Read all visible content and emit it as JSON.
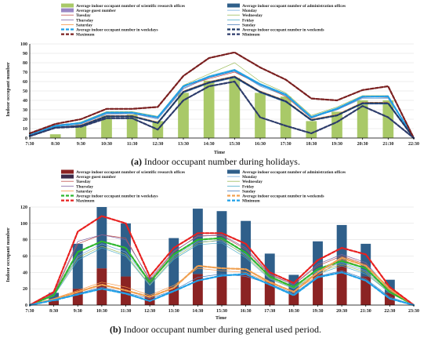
{
  "chart_data": [
    {
      "type": "bar",
      "caption_tag": "(a)",
      "caption": " Indoor occupant number during holidays.",
      "xlabel": "Time",
      "ylabel": "Indoor occupant number",
      "ylim": [
        0,
        100
      ],
      "yticks": [
        0,
        10,
        20,
        30,
        40,
        50,
        60,
        70,
        80,
        90,
        100
      ],
      "categories": [
        "7:30",
        "8:30",
        "9:30",
        "10:30",
        "11:30",
        "12:30",
        "13:30",
        "14:30",
        "15:30",
        "16:30",
        "17:30",
        "18:30",
        "19:30",
        "20:30",
        "21:30",
        "22:30"
      ],
      "grid": true,
      "legend_placement": "top",
      "bar_series": [
        {
          "name": "Average indoor occupant number of scientific research offices",
          "color": "#a9c968",
          "values": [
            0,
            4,
            14,
            24,
            25,
            18,
            48,
            61,
            64,
            48,
            44,
            18,
            28,
            40,
            40,
            0
          ]
        },
        {
          "name": "Average indoor occupant number of administration offices",
          "color": "#2f5f8a",
          "values": [
            0,
            0,
            0,
            0,
            0,
            0,
            0,
            0,
            0,
            0,
            0,
            0,
            0,
            0,
            0,
            0
          ]
        },
        {
          "name": "Average guest number",
          "color": "#9a86c4",
          "values": [
            0,
            0,
            0,
            0,
            0,
            0,
            0,
            0,
            0,
            0,
            0,
            0,
            0,
            0,
            0,
            0
          ]
        }
      ],
      "line_series": [
        {
          "name": "Monday",
          "color": "#6fa8dc",
          "dash": "",
          "width": 0.7,
          "values": [
            3,
            12,
            15,
            25,
            26,
            20,
            52,
            65,
            72,
            55,
            45,
            22,
            30,
            42,
            42,
            0
          ]
        },
        {
          "name": "Tuesday",
          "color": "#c0504d",
          "dash": "",
          "width": 0.7,
          "values": [
            4,
            14,
            16,
            27,
            27,
            22,
            55,
            63,
            70,
            57,
            44,
            21,
            31,
            44,
            43,
            0
          ]
        },
        {
          "name": "Wednesday",
          "color": "#9bbb59",
          "dash": "",
          "width": 0.7,
          "values": [
            3,
            12,
            17,
            28,
            28,
            23,
            56,
            68,
            80,
            60,
            48,
            24,
            33,
            45,
            45,
            0
          ]
        },
        {
          "name": "Thursday",
          "color": "#8064a2",
          "dash": "",
          "width": 0.7,
          "values": [
            4,
            13,
            15,
            26,
            26,
            21,
            53,
            64,
            71,
            56,
            46,
            22,
            30,
            43,
            44,
            0
          ]
        },
        {
          "name": "Friday",
          "color": "#4bacc6",
          "dash": "",
          "width": 0.7,
          "values": [
            3,
            12,
            16,
            27,
            27,
            22,
            54,
            66,
            73,
            58,
            47,
            23,
            32,
            44,
            45,
            0
          ]
        },
        {
          "name": "Saturday",
          "color": "#f79646",
          "dash": "",
          "width": 0.7,
          "values": [
            2,
            11,
            14,
            24,
            24,
            17,
            50,
            60,
            66,
            50,
            40,
            20,
            25,
            38,
            38,
            0
          ]
        },
        {
          "name": "Sunday",
          "color": "#4f81bd",
          "dash": "",
          "width": 0.7,
          "values": [
            2,
            11,
            13,
            23,
            23,
            16,
            48,
            58,
            64,
            48,
            38,
            19,
            24,
            36,
            36,
            0
          ]
        },
        {
          "name": "Average indoor occupant number in weekdays",
          "color": "#1fa0e8",
          "dash": "4,2",
          "width": 2.2,
          "values": [
            3,
            13,
            16,
            27,
            27,
            22,
            55,
            65,
            72,
            57,
            46,
            22,
            31,
            44,
            44,
            0
          ]
        },
        {
          "name": "Average indoor occupant number in weekends",
          "color": "#1f3a68",
          "dash": "4,2",
          "width": 2.2,
          "values": [
            2,
            11,
            13,
            23,
            23,
            16,
            49,
            59,
            65,
            49,
            39,
            19,
            24,
            37,
            37,
            0
          ]
        },
        {
          "name": "Maximum",
          "color": "#7a1f1f",
          "dash": "4,2",
          "width": 2.2,
          "values": [
            5,
            15,
            20,
            31,
            31,
            33,
            66,
            85,
            91,
            75,
            62,
            42,
            40,
            51,
            55,
            0
          ]
        },
        {
          "name": "Minimum",
          "color": "#2d3c6b",
          "dash": "4,2",
          "width": 2.2,
          "values": [
            2,
            11,
            12,
            21,
            21,
            9,
            40,
            55,
            60,
            22,
            13,
            5,
            17,
            34,
            22,
            0
          ]
        }
      ]
    },
    {
      "type": "bar",
      "caption_tag": "(b)",
      "caption": " Indoor occupant number during general used period.",
      "xlabel": "Time",
      "ylabel": "Indoor occupant number",
      "ylim": [
        0,
        120
      ],
      "yticks": [
        0,
        20,
        40,
        60,
        80,
        100,
        120
      ],
      "categories": [
        "7:30",
        "8:30",
        "9:30",
        "10:30",
        "11:30",
        "12:30",
        "13:30",
        "14:30",
        "15:30",
        "16:30",
        "17:30",
        "18:30",
        "19:30",
        "20:30",
        "21:30",
        "22:30",
        "23:30"
      ],
      "grid": true,
      "legend_placement": "top",
      "bar_series": [
        {
          "name": "Average indoor occupant number of scientific research offices",
          "color": "#8b2323",
          "values": [
            0,
            5,
            20,
            45,
            35,
            12,
            22,
            38,
            35,
            38,
            28,
            15,
            38,
            48,
            35,
            15,
            0
          ]
        },
        {
          "name": "Average indoor occupant number of administration offices",
          "color": "#2f5f8a",
          "values": [
            0,
            10,
            55,
            75,
            65,
            22,
            60,
            80,
            80,
            65,
            35,
            22,
            40,
            50,
            40,
            16,
            0
          ]
        },
        {
          "name": "Average guest number",
          "color": "#3a2a4a",
          "values": [
            0,
            0,
            0,
            0,
            0,
            0,
            0,
            0,
            0,
            0,
            0,
            0,
            0,
            0,
            0,
            0,
            0
          ]
        }
      ],
      "line_series": [
        {
          "name": "Monday",
          "color": "#6fa8dc",
          "dash": "",
          "width": 0.7,
          "values": [
            0,
            12,
            60,
            75,
            65,
            28,
            60,
            78,
            78,
            62,
            35,
            23,
            42,
            52,
            42,
            16,
            0
          ]
        },
        {
          "name": "Tuesday",
          "color": "#c0504d",
          "dash": "",
          "width": 0.7,
          "values": [
            0,
            13,
            75,
            86,
            82,
            30,
            65,
            85,
            85,
            68,
            37,
            25,
            48,
            60,
            50,
            18,
            0
          ]
        },
        {
          "name": "Wednesday",
          "color": "#9bbb59",
          "dash": "",
          "width": 0.7,
          "values": [
            0,
            12,
            58,
            72,
            62,
            25,
            58,
            76,
            80,
            60,
            33,
            21,
            40,
            50,
            40,
            15,
            0
          ]
        },
        {
          "name": "Thursday",
          "color": "#8064a2",
          "dash": "",
          "width": 0.7,
          "values": [
            0,
            14,
            78,
            86,
            80,
            32,
            66,
            84,
            86,
            70,
            38,
            25,
            50,
            62,
            52,
            18,
            0
          ]
        },
        {
          "name": "Friday",
          "color": "#4bacc6",
          "dash": "",
          "width": 0.7,
          "values": [
            0,
            11,
            55,
            70,
            60,
            24,
            56,
            74,
            76,
            58,
            32,
            20,
            38,
            48,
            38,
            15,
            0
          ]
        },
        {
          "name": "Saturday",
          "color": "#f79646",
          "dash": "",
          "width": 0.7,
          "values": [
            0,
            8,
            18,
            28,
            22,
            12,
            24,
            45,
            42,
            40,
            27,
            17,
            36,
            56,
            45,
            18,
            0
          ]
        },
        {
          "name": "Sunday",
          "color": "#4f81bd",
          "dash": "",
          "width": 0.7,
          "values": [
            0,
            6,
            14,
            22,
            15,
            8,
            18,
            34,
            38,
            35,
            26,
            14,
            35,
            42,
            32,
            10,
            0
          ]
        },
        {
          "name": "Average indoor occupant number in weekdays",
          "color": "#2eb82e",
          "dash": "4,2",
          "width": 2.2,
          "values": [
            0,
            12,
            65,
            78,
            70,
            28,
            62,
            80,
            82,
            64,
            35,
            22,
            44,
            54,
            45,
            16,
            0
          ]
        },
        {
          "name": "Average indoor occupant number in weekends",
          "color": "#f0a050",
          "dash": "4,2",
          "width": 2.2,
          "values": [
            0,
            7,
            16,
            25,
            18,
            10,
            21,
            48,
            45,
            44,
            28,
            16,
            40,
            58,
            48,
            20,
            0
          ]
        },
        {
          "name": "Maximum",
          "color": "#e8201f",
          "dash": "4,2",
          "width": 2.2,
          "values": [
            0,
            16,
            90,
            109,
            100,
            35,
            70,
            88,
            88,
            75,
            40,
            27,
            55,
            70,
            62,
            22,
            0
          ]
        },
        {
          "name": "Minimum",
          "color": "#1fa0e8",
          "dash": "4,2",
          "width": 2.2,
          "values": [
            0,
            6,
            13,
            20,
            14,
            5,
            17,
            30,
            36,
            38,
            25,
            12,
            34,
            40,
            30,
            8,
            0
          ]
        }
      ]
    }
  ]
}
